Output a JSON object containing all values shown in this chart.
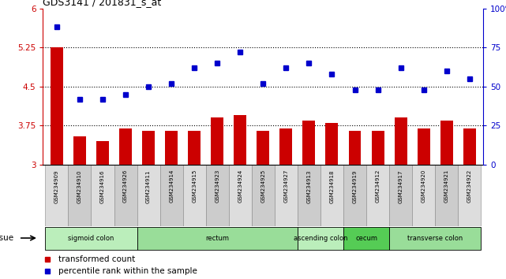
{
  "title": "GDS3141 / 201831_s_at",
  "samples": [
    "GSM234909",
    "GSM234910",
    "GSM234916",
    "GSM234926",
    "GSM234911",
    "GSM234914",
    "GSM234915",
    "GSM234923",
    "GSM234924",
    "GSM234925",
    "GSM234927",
    "GSM234913",
    "GSM234918",
    "GSM234919",
    "GSM234912",
    "GSM234917",
    "GSM234920",
    "GSM234921",
    "GSM234922"
  ],
  "bar_values": [
    5.25,
    3.55,
    3.45,
    3.7,
    3.65,
    3.65,
    3.65,
    3.9,
    3.95,
    3.65,
    3.7,
    3.85,
    3.8,
    3.65,
    3.65,
    3.9,
    3.7,
    3.85,
    3.7
  ],
  "dot_values": [
    88,
    42,
    42,
    45,
    50,
    52,
    62,
    65,
    72,
    52,
    62,
    65,
    58,
    48,
    48,
    62,
    48,
    60,
    55
  ],
  "bar_color": "#cc0000",
  "dot_color": "#0000cc",
  "ylim_left": [
    3.0,
    6.0
  ],
  "ylim_right": [
    0,
    100
  ],
  "yticks_left": [
    3.0,
    3.75,
    4.5,
    5.25,
    6.0
  ],
  "yticks_right": [
    0,
    25,
    50,
    75,
    100
  ],
  "ytick_labels_left": [
    "3",
    "3.75",
    "4.5",
    "5.25",
    "6"
  ],
  "ytick_labels_right": [
    "0",
    "25",
    "50",
    "75",
    "100%"
  ],
  "hlines": [
    3.75,
    4.5,
    5.25
  ],
  "tissue_groups": [
    {
      "label": "sigmoid colon",
      "start": 0,
      "end": 4,
      "color": "#bbeebb"
    },
    {
      "label": "rectum",
      "start": 4,
      "end": 11,
      "color": "#99dd99"
    },
    {
      "label": "ascending colon",
      "start": 11,
      "end": 13,
      "color": "#bbeebb"
    },
    {
      "label": "cecum",
      "start": 13,
      "end": 15,
      "color": "#55cc55"
    },
    {
      "label": "transverse colon",
      "start": 15,
      "end": 19,
      "color": "#99dd99"
    }
  ],
  "tissue_label": "tissue",
  "legend_bar": "transformed count",
  "legend_dot": "percentile rank within the sample",
  "xtick_odd_color": "#dddddd",
  "xtick_even_color": "#cccccc"
}
